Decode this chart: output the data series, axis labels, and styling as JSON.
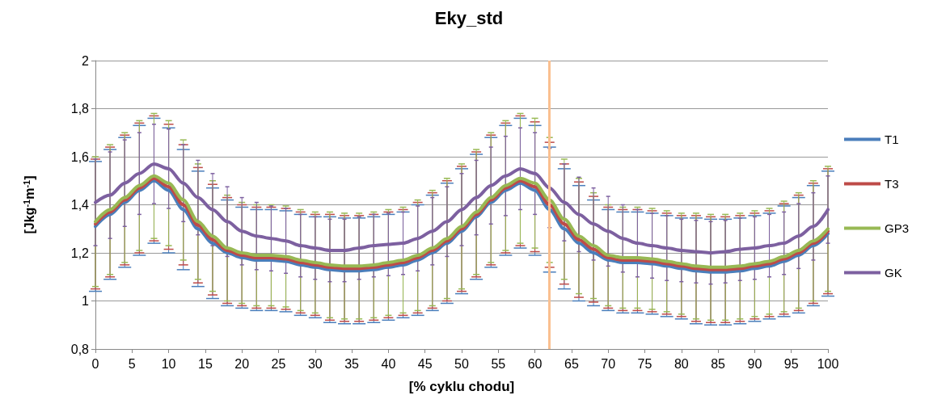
{
  "chart_data": {
    "type": "line",
    "title": "Eky_std",
    "xlabel": "[% cyklu chodu]",
    "ylabel": "[Jkg$^{-1}$m$^{-1}$]",
    "x": [
      0,
      2,
      4,
      6,
      8,
      10,
      12,
      14,
      16,
      18,
      20,
      22,
      24,
      26,
      28,
      30,
      32,
      34,
      36,
      38,
      40,
      42,
      44,
      46,
      48,
      50,
      52,
      54,
      56,
      58,
      60,
      62,
      64,
      66,
      68,
      70,
      72,
      74,
      76,
      78,
      80,
      82,
      84,
      86,
      88,
      90,
      92,
      94,
      96,
      98,
      100
    ],
    "series": [
      {
        "name": "T1",
        "color": "#4a7ebb",
        "values": [
          1.31,
          1.36,
          1.41,
          1.46,
          1.5,
          1.46,
          1.38,
          1.3,
          1.24,
          1.2,
          1.18,
          1.17,
          1.17,
          1.165,
          1.15,
          1.14,
          1.13,
          1.125,
          1.125,
          1.13,
          1.14,
          1.15,
          1.17,
          1.2,
          1.24,
          1.29,
          1.35,
          1.41,
          1.46,
          1.49,
          1.46,
          1.38,
          1.3,
          1.24,
          1.2,
          1.17,
          1.16,
          1.16,
          1.155,
          1.145,
          1.135,
          1.125,
          1.12,
          1.12,
          1.125,
          1.135,
          1.145,
          1.165,
          1.19,
          1.23,
          1.28
        ],
        "errors": [
          0.27,
          0.27,
          0.27,
          0.27,
          0.26,
          0.26,
          0.25,
          0.24,
          0.23,
          0.22,
          0.21,
          0.21,
          0.21,
          0.21,
          0.21,
          0.21,
          0.22,
          0.22,
          0.22,
          0.22,
          0.22,
          0.22,
          0.23,
          0.24,
          0.25,
          0.26,
          0.26,
          0.27,
          0.27,
          0.27,
          0.27,
          0.26,
          0.25,
          0.24,
          0.22,
          0.21,
          0.21,
          0.21,
          0.21,
          0.21,
          0.21,
          0.22,
          0.22,
          0.22,
          0.22,
          0.22,
          0.22,
          0.23,
          0.24,
          0.25,
          0.26
        ]
      },
      {
        "name": "T3",
        "color": "#be4b48",
        "values": [
          1.32,
          1.37,
          1.42,
          1.47,
          1.51,
          1.475,
          1.4,
          1.315,
          1.255,
          1.21,
          1.19,
          1.18,
          1.18,
          1.175,
          1.16,
          1.15,
          1.14,
          1.135,
          1.135,
          1.14,
          1.15,
          1.16,
          1.18,
          1.21,
          1.25,
          1.3,
          1.36,
          1.42,
          1.47,
          1.5,
          1.475,
          1.4,
          1.32,
          1.255,
          1.215,
          1.18,
          1.17,
          1.17,
          1.165,
          1.155,
          1.145,
          1.135,
          1.13,
          1.13,
          1.135,
          1.145,
          1.155,
          1.175,
          1.2,
          1.24,
          1.29
        ],
        "errors": [
          0.27,
          0.27,
          0.27,
          0.27,
          0.26,
          0.26,
          0.25,
          0.24,
          0.23,
          0.22,
          0.21,
          0.21,
          0.21,
          0.21,
          0.21,
          0.21,
          0.22,
          0.22,
          0.22,
          0.22,
          0.22,
          0.22,
          0.23,
          0.24,
          0.25,
          0.26,
          0.26,
          0.27,
          0.27,
          0.27,
          0.27,
          0.26,
          0.25,
          0.24,
          0.22,
          0.21,
          0.21,
          0.21,
          0.21,
          0.21,
          0.21,
          0.22,
          0.22,
          0.22,
          0.22,
          0.22,
          0.22,
          0.23,
          0.24,
          0.25,
          0.26
        ]
      },
      {
        "name": "GP3",
        "color": "#98b954",
        "values": [
          1.33,
          1.38,
          1.43,
          1.48,
          1.52,
          1.49,
          1.42,
          1.33,
          1.27,
          1.22,
          1.2,
          1.19,
          1.19,
          1.185,
          1.17,
          1.16,
          1.15,
          1.145,
          1.145,
          1.15,
          1.16,
          1.17,
          1.19,
          1.22,
          1.26,
          1.31,
          1.37,
          1.43,
          1.48,
          1.51,
          1.49,
          1.42,
          1.34,
          1.27,
          1.23,
          1.19,
          1.18,
          1.18,
          1.175,
          1.165,
          1.155,
          1.145,
          1.14,
          1.14,
          1.145,
          1.155,
          1.165,
          1.185,
          1.21,
          1.25,
          1.3
        ],
        "errors": [
          0.27,
          0.27,
          0.27,
          0.27,
          0.26,
          0.26,
          0.25,
          0.24,
          0.23,
          0.22,
          0.21,
          0.21,
          0.21,
          0.21,
          0.21,
          0.21,
          0.22,
          0.22,
          0.22,
          0.22,
          0.22,
          0.22,
          0.23,
          0.24,
          0.25,
          0.26,
          0.26,
          0.27,
          0.27,
          0.27,
          0.27,
          0.26,
          0.25,
          0.24,
          0.22,
          0.21,
          0.21,
          0.21,
          0.21,
          0.21,
          0.21,
          0.22,
          0.22,
          0.22,
          0.22,
          0.22,
          0.22,
          0.23,
          0.24,
          0.25,
          0.26
        ]
      },
      {
        "name": "GK",
        "color": "#7d60a0",
        "values": [
          1.41,
          1.44,
          1.49,
          1.53,
          1.57,
          1.55,
          1.49,
          1.43,
          1.38,
          1.33,
          1.29,
          1.27,
          1.26,
          1.25,
          1.23,
          1.22,
          1.21,
          1.21,
          1.22,
          1.23,
          1.235,
          1.24,
          1.26,
          1.29,
          1.33,
          1.38,
          1.43,
          1.48,
          1.52,
          1.55,
          1.53,
          1.47,
          1.41,
          1.36,
          1.32,
          1.29,
          1.26,
          1.24,
          1.23,
          1.22,
          1.21,
          1.205,
          1.2,
          1.205,
          1.215,
          1.22,
          1.23,
          1.24,
          1.27,
          1.31,
          1.38
        ],
        "errors": [
          0.18,
          0.18,
          0.18,
          0.17,
          0.165,
          0.165,
          0.16,
          0.155,
          0.15,
          0.145,
          0.14,
          0.14,
          0.135,
          0.135,
          0.13,
          0.13,
          0.13,
          0.13,
          0.13,
          0.13,
          0.13,
          0.13,
          0.135,
          0.14,
          0.145,
          0.15,
          0.155,
          0.16,
          0.165,
          0.17,
          0.17,
          0.165,
          0.16,
          0.155,
          0.15,
          0.145,
          0.14,
          0.14,
          0.135,
          0.135,
          0.13,
          0.13,
          0.13,
          0.13,
          0.13,
          0.13,
          0.13,
          0.13,
          0.135,
          0.14,
          0.14
        ]
      }
    ],
    "xlim": [
      0,
      100
    ],
    "xticks": [
      0,
      5,
      10,
      15,
      20,
      25,
      30,
      35,
      40,
      45,
      50,
      55,
      60,
      65,
      70,
      75,
      80,
      85,
      90,
      95,
      100
    ],
    "ylim": [
      0.8,
      2
    ],
    "yticks": [
      {
        "value": 0.8,
        "label": "0,8"
      },
      1,
      {
        "value": 1.2,
        "label": "1,2"
      },
      {
        "value": 1.4,
        "label": "1,4"
      },
      {
        "value": 1.6,
        "label": "1,6"
      },
      {
        "value": 1.8,
        "label": "1,8"
      },
      2
    ],
    "ref_lines": [
      {
        "axis": "x",
        "value": 62,
        "color": "#fac090"
      }
    ],
    "grid": "y",
    "legend": "right",
    "marker": "none",
    "line_style": "solid"
  }
}
